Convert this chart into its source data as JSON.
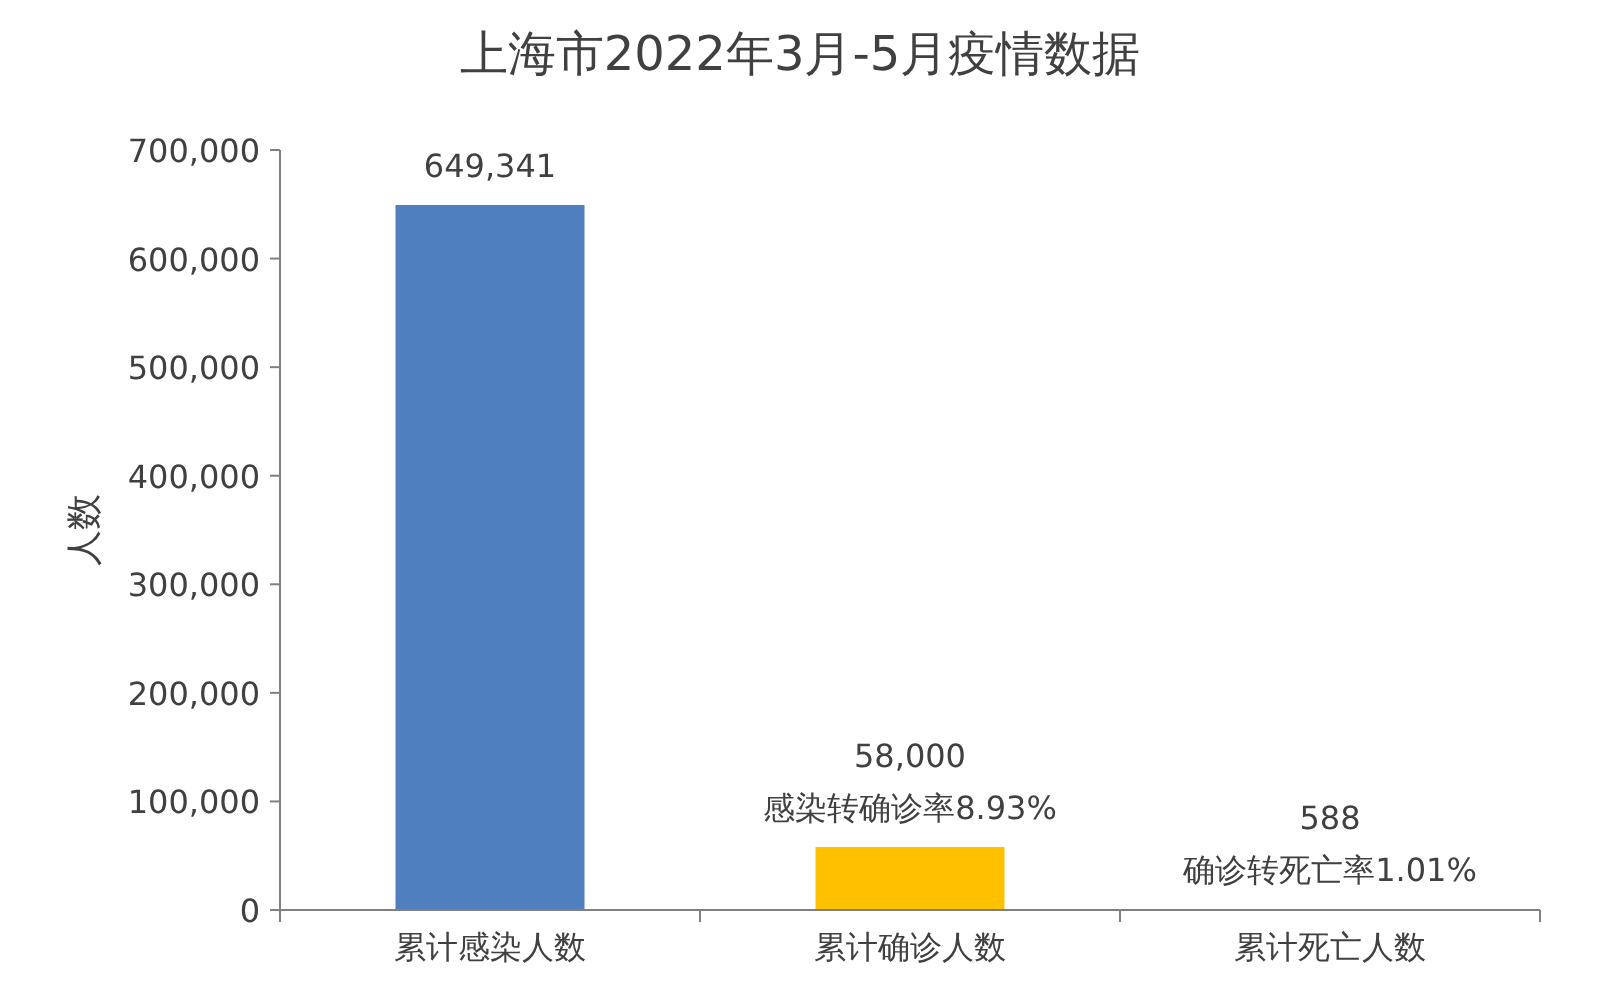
{
  "chart_data": {
    "type": "bar",
    "title": "上海市2022年3月-5月疫情数据",
    "ylabel": "人数",
    "categories": [
      "累计感染人数",
      "累计确诊人数",
      "累计死亡人数"
    ],
    "values": [
      649341,
      58000,
      588
    ],
    "colors": [
      "#4f7fbf",
      "#ffc000",
      "#ff0000"
    ],
    "value_labels": [
      "649,341",
      "58,000",
      "588"
    ],
    "annotations": [
      {
        "text": "感染转确诊率8.93%",
        "x": "累计确诊人数",
        "y": 58000
      },
      {
        "text": "确诊转死亡率1.01%",
        "x": "累计死亡人数",
        "y": 588
      }
    ],
    "ylim": [
      0,
      700000
    ],
    "yticks": [
      {
        "value": 0,
        "label": "0"
      },
      {
        "value": 100000,
        "label": "100,000"
      },
      {
        "value": 200000,
        "label": "200,000"
      },
      {
        "value": 300000,
        "label": "300,000"
      },
      {
        "value": 400000,
        "label": "400,000"
      },
      {
        "value": 500000,
        "label": "500,000"
      },
      {
        "value": 600000,
        "label": "600,000"
      },
      {
        "value": 700000,
        "label": "700,000"
      }
    ],
    "grid": false
  }
}
